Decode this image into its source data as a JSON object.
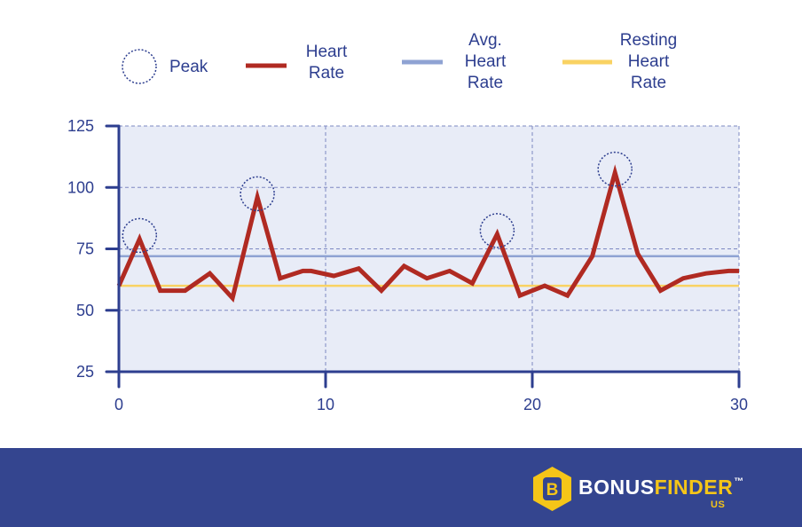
{
  "colors": {
    "plot_bg": "#e8ecf7",
    "axis": "#2d3e8f",
    "grid": "#7d88c2",
    "heart_rate": "#b02a22",
    "avg_heart_rate": "#8fa3d3",
    "resting_heart_rate": "#f9d262",
    "peak_marker": "#2d3e8f",
    "footer_bg": "#34458f",
    "brand_accent": "#f5c518"
  },
  "chart_data": {
    "type": "line",
    "title": "",
    "xlabel": "",
    "ylabel": "",
    "xlim": [
      0,
      30
    ],
    "ylim": [
      25,
      125
    ],
    "grid": true,
    "legend_position": "top",
    "x_ticks": [
      0,
      10,
      20,
      30
    ],
    "x_tick_labels": [
      "0",
      "10",
      "20",
      "30"
    ],
    "y_ticks": [
      25,
      50,
      75,
      100,
      125
    ],
    "y_tick_labels": [
      "25",
      "50",
      "75",
      "100",
      "125"
    ],
    "legend": {
      "peak": "Peak",
      "heart_rate": [
        "Heart",
        "Rate"
      ],
      "avg_heart_rate": [
        "Avg.",
        "Heart",
        "Rate"
      ],
      "resting_heart_rate": [
        "Resting",
        "Heart",
        "Rate"
      ]
    },
    "series": [
      {
        "name": "Heart Rate",
        "x": [
          0,
          1,
          2,
          3.2,
          4.4,
          5.5,
          6.7,
          7.8,
          8.9,
          9.3,
          10.4,
          11.6,
          12.7,
          13.8,
          14.9,
          16,
          17.1,
          18.3,
          19.4,
          20.6,
          21.7,
          22.9,
          24,
          25.1,
          26.2,
          27.3,
          28.4,
          29.5,
          30
        ],
        "y": [
          60,
          79,
          58,
          58,
          65,
          55,
          96,
          63,
          66,
          66,
          64,
          67,
          58,
          68,
          63,
          66,
          61,
          81,
          56,
          60,
          56,
          72,
          106,
          73,
          58,
          63,
          65,
          66,
          66
        ]
      },
      {
        "name": "Avg. Heart Rate",
        "x": [
          0,
          30
        ],
        "y": [
          72,
          72
        ]
      },
      {
        "name": "Resting Heart Rate",
        "x": [
          0,
          30
        ],
        "y": [
          60,
          60
        ]
      }
    ],
    "peaks": [
      {
        "x": 1,
        "y": 79
      },
      {
        "x": 6.7,
        "y": 96
      },
      {
        "x": 18.3,
        "y": 81
      },
      {
        "x": 24,
        "y": 106
      }
    ]
  },
  "brand": {
    "name_part1": "BONUS",
    "name_part2": "FINDER",
    "trademark": "™",
    "region": "US",
    "icon_letter": "B"
  }
}
